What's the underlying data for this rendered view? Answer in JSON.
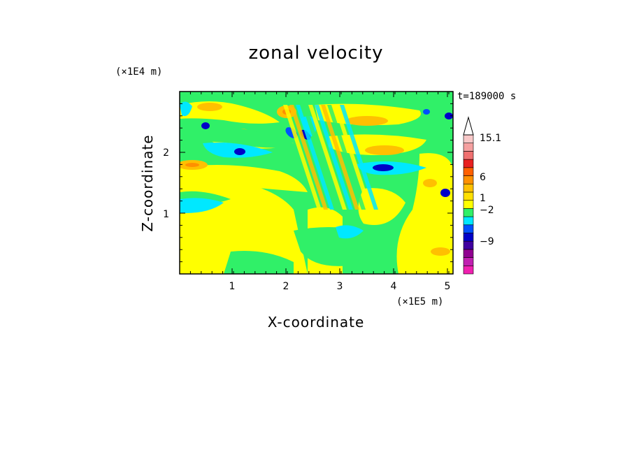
{
  "chart_data": {
    "type": "heatmap",
    "title": "zonal velocity",
    "xlabel": "X-coordinate",
    "ylabel": "Z-coordinate",
    "x_scale_label": "(×1E5 m)",
    "y_scale_label": "(×1E4 m)",
    "time_label": "t=189000 s",
    "xlim": [
      0,
      5.12
    ],
    "ylim": [
      0,
      2.98
    ],
    "x_ticks": [
      "1",
      "2",
      "3",
      "4",
      "5"
    ],
    "y_ticks": [
      "1",
      "2"
    ],
    "colorbar": {
      "levels_colors": [
        "#f020b0",
        "#c020b0",
        "#900090",
        "#4000a0",
        "#0000c8",
        "#0050ff",
        "#00e8ff",
        "#30f068",
        "#ffff00",
        "#ffe000",
        "#ffc000",
        "#ff9000",
        "#ff6000",
        "#e82020",
        "#f07070",
        "#f5a0a0",
        "#f8c8c8"
      ],
      "labels": [
        "15.1",
        "6",
        "1",
        "−2",
        "−9"
      ],
      "extend_max": true
    }
  }
}
